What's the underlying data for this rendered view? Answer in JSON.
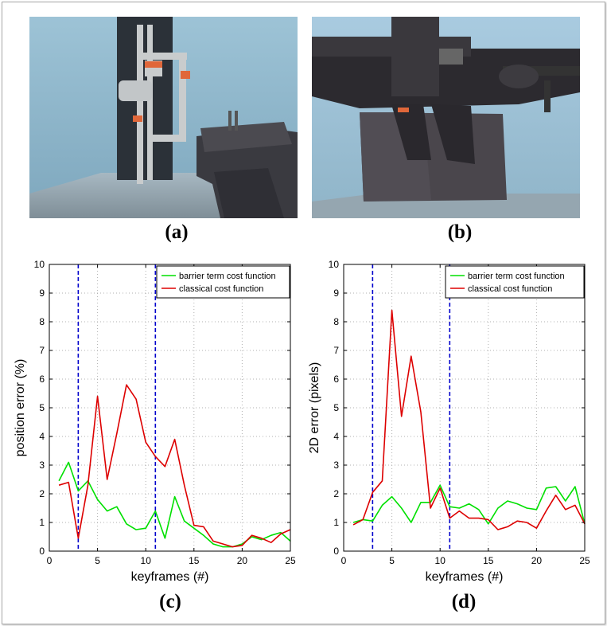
{
  "panels": {
    "a": {
      "caption": "(a)",
      "scene": "industrial-pipes-robot-render"
    },
    "b": {
      "caption": "(b)",
      "scene": "robot-arm-closeup-render"
    },
    "c": {
      "caption": "(c)"
    },
    "d": {
      "caption": "(d)"
    }
  },
  "colors": {
    "barrier": "#00e000",
    "classical": "#dd0000",
    "keyframe_lines": "#0000cc",
    "grid": "#b0b0b0"
  },
  "chart_data": [
    {
      "type": "line",
      "id": "c",
      "xlabel": "keyframes (#)",
      "ylabel": "position error (%)",
      "xlim": [
        0,
        25
      ],
      "ylim": [
        0,
        10
      ],
      "xticks": [
        0,
        5,
        10,
        15,
        20,
        25
      ],
      "yticks": [
        0,
        1,
        2,
        3,
        4,
        5,
        6,
        7,
        8,
        9,
        10
      ],
      "grid": true,
      "legend_position": "top-right",
      "vlines": [
        3,
        11
      ],
      "x": [
        1,
        2,
        3,
        4,
        5,
        6,
        7,
        8,
        9,
        10,
        11,
        12,
        13,
        14,
        15,
        16,
        17,
        18,
        19,
        20,
        21,
        22,
        23,
        24,
        25
      ],
      "series": [
        {
          "name": "barrier term cost function",
          "color": "#00e000",
          "values": [
            2.45,
            3.1,
            2.1,
            2.45,
            1.8,
            1.4,
            1.55,
            0.95,
            0.75,
            0.8,
            1.4,
            0.45,
            1.9,
            1.05,
            0.8,
            0.55,
            0.25,
            0.15,
            0.15,
            0.25,
            0.5,
            0.4,
            0.55,
            0.65,
            0.35
          ]
        },
        {
          "name": "classical cost function",
          "color": "#dd0000",
          "values": [
            2.3,
            2.4,
            0.45,
            2.3,
            5.4,
            2.5,
            4.1,
            5.8,
            5.3,
            3.8,
            3.3,
            2.95,
            3.9,
            2.3,
            0.9,
            0.85,
            0.35,
            0.25,
            0.15,
            0.2,
            0.55,
            0.45,
            0.3,
            0.6,
            0.75
          ]
        }
      ]
    },
    {
      "type": "line",
      "id": "d",
      "xlabel": "keyframes (#)",
      "ylabel": "2D error (pixels)",
      "xlim": [
        0,
        25
      ],
      "ylim": [
        0,
        10
      ],
      "xticks": [
        0,
        5,
        10,
        15,
        20,
        25
      ],
      "yticks": [
        0,
        1,
        2,
        3,
        4,
        5,
        6,
        7,
        8,
        9,
        10
      ],
      "grid": true,
      "legend_position": "top-right",
      "vlines": [
        3,
        11
      ],
      "x": [
        1,
        2,
        3,
        4,
        5,
        6,
        7,
        8,
        9,
        10,
        11,
        12,
        13,
        14,
        15,
        16,
        17,
        18,
        19,
        20,
        21,
        22,
        23,
        24,
        25
      ],
      "series": [
        {
          "name": "barrier term cost function",
          "color": "#00e000",
          "values": [
            1.0,
            1.1,
            1.05,
            1.6,
            1.9,
            1.5,
            1.0,
            1.7,
            1.7,
            2.3,
            1.55,
            1.5,
            1.65,
            1.45,
            0.95,
            1.5,
            1.75,
            1.65,
            1.5,
            1.45,
            2.2,
            2.25,
            1.75,
            2.25,
            0.95
          ]
        },
        {
          "name": "classical cost function",
          "color": "#dd0000",
          "values": [
            0.92,
            1.1,
            2.05,
            2.45,
            8.4,
            4.7,
            6.8,
            4.85,
            1.5,
            2.2,
            1.15,
            1.4,
            1.15,
            1.15,
            1.1,
            0.75,
            0.85,
            1.05,
            1.0,
            0.8,
            1.4,
            1.95,
            1.45,
            1.6,
            0.95
          ]
        }
      ]
    }
  ]
}
